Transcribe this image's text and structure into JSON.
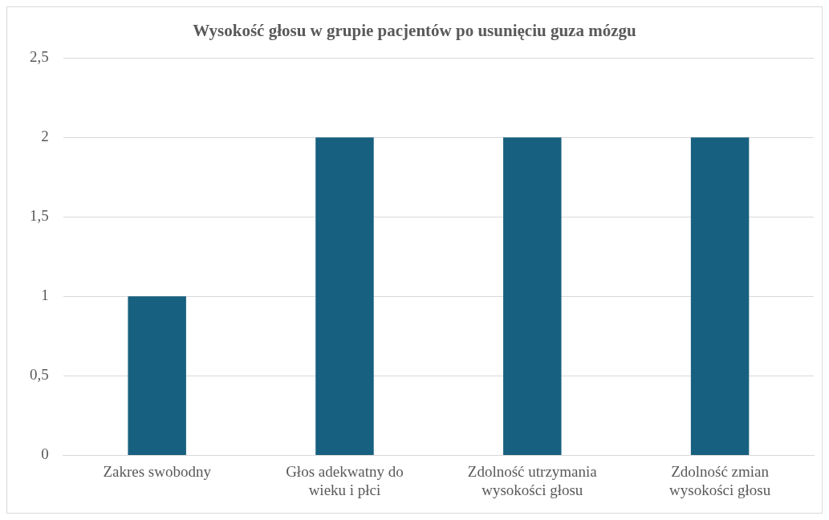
{
  "chart_data": {
    "type": "bar",
    "title": "Wysokość głosu w grupie pacjentów po usunięciu guza mózgu",
    "categories": [
      "Zakres swobodny",
      "Głos adekwatny do wieku i płci",
      "Zdolność utrzymania wysokości głosu",
      "Zdolność zmian wysokości głosu"
    ],
    "values": [
      1,
      2,
      2,
      2
    ],
    "color": "#18607f",
    "ylim": [
      0,
      2.5
    ],
    "yticks": [
      0,
      {
        "value": 0.5,
        "label": "0,5"
      },
      1,
      {
        "value": 1.5,
        "label": "1,5"
      },
      2,
      {
        "value": 2.5,
        "label": "2,5"
      }
    ],
    "grid": "y",
    "legend": false
  }
}
